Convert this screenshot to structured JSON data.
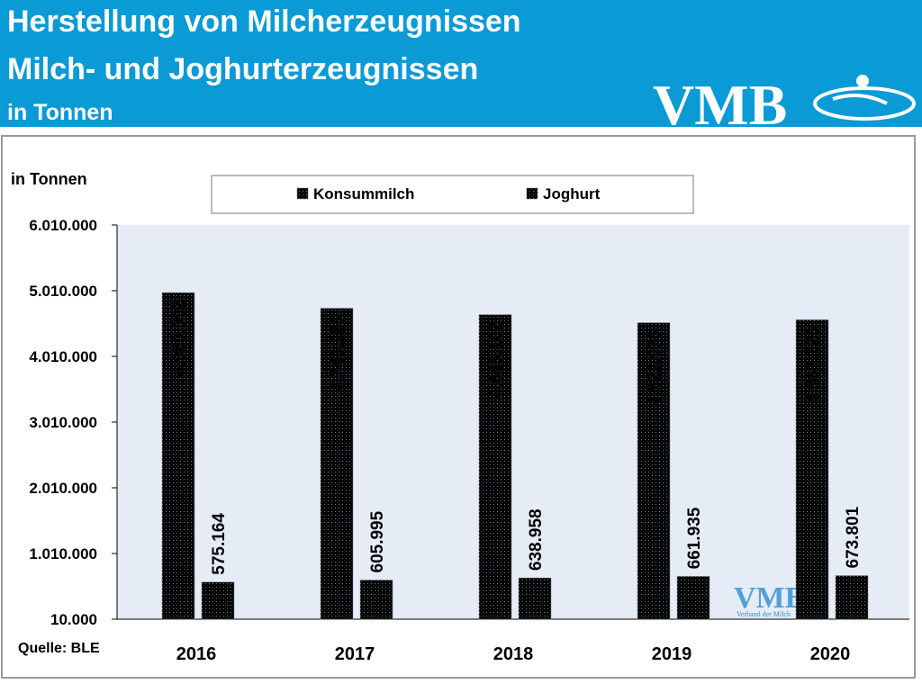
{
  "header": {
    "title": "Herstellung von Milcherzeugnissen",
    "subtitle": "Milch- und Joghurterzeugnissen",
    "unit": "in Tonnen",
    "logo": "VMB"
  },
  "chart_data": {
    "type": "bar",
    "y_label": "in Tonnen",
    "source": "Quelle: BLE",
    "watermark": "VMB",
    "watermark_subtitle": "Verband der Milch",
    "categories": [
      "2016",
      "2017",
      "2018",
      "2019",
      "2020"
    ],
    "series": [
      {
        "name": "Konsummilch",
        "color": "#3cc3e6",
        "values": [
          4980892,
          4743286,
          4646102,
          4522976,
          4567323
        ],
        "value_labels": [
          "4.980.892",
          "4.743.286",
          "4.646.102",
          "4.522.976",
          "4.567.323"
        ]
      },
      {
        "name": "Joghurt",
        "color": "#d9d9d9",
        "values": [
          575164,
          605995,
          638958,
          661935,
          673801
        ],
        "value_labels": [
          "575.164",
          "605.995",
          "638.958",
          "661.935",
          "673.801"
        ]
      }
    ],
    "ylim": [
      10000,
      6010000
    ],
    "yticks": [
      {
        "value": 10000,
        "label": "10.000"
      },
      {
        "value": 1010000,
        "label": "1.010.000"
      },
      {
        "value": 2010000,
        "label": "2.010.000"
      },
      {
        "value": 3010000,
        "label": "3.010.000"
      },
      {
        "value": 4010000,
        "label": "4.010.000"
      },
      {
        "value": 5010000,
        "label": "5.010.000"
      },
      {
        "value": 6010000,
        "label": "6.010.000"
      }
    ],
    "grid": false,
    "legend": "top"
  }
}
